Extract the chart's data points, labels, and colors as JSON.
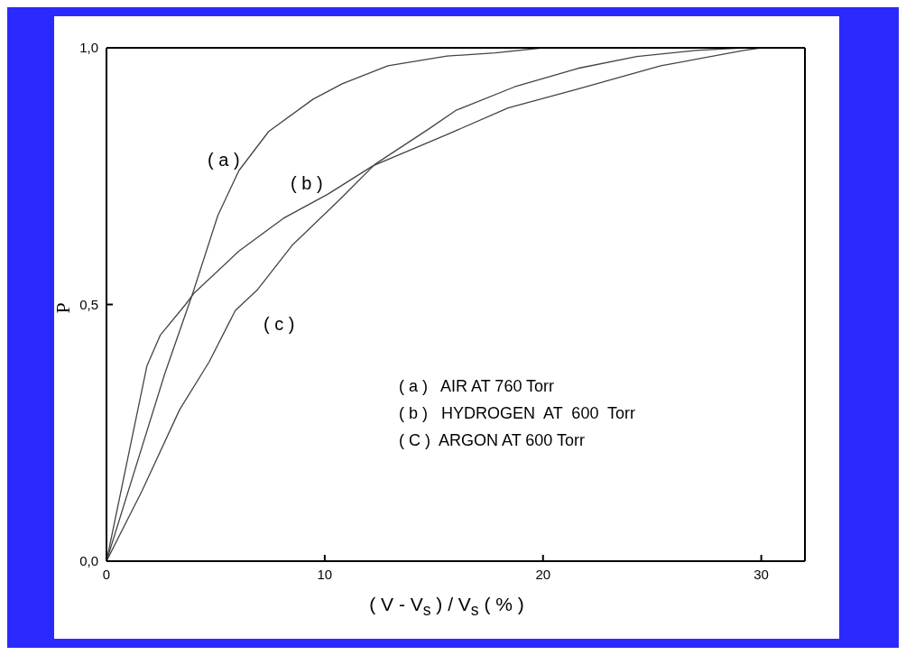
{
  "chart_data": {
    "type": "line",
    "xlabel": "( V - V$_{s}$ ) / V$_{s}$ ( % )",
    "ylabel": "P",
    "xlim": [
      0,
      32
    ],
    "xticks": [
      0,
      10,
      20,
      30
    ],
    "ylim": [
      0,
      1
    ],
    "yticks": [
      {
        "value": 0,
        "label": "0,0"
      },
      {
        "value": 0.5,
        "label": "0,5"
      },
      {
        "value": 1,
        "label": "1,0"
      }
    ],
    "legend": false,
    "marker": "none",
    "line_style": "solid",
    "series": [
      {
        "name": "( a )",
        "color": "#444444",
        "x": [
          0,
          2.67,
          3.96,
          5.1,
          6.07,
          7.43,
          9.47,
          10.8,
          12.9,
          15.6,
          17.8,
          20,
          25,
          30,
          32
        ],
        "values": [
          0,
          0.365,
          0.523,
          0.673,
          0.761,
          0.837,
          0.9,
          0.93,
          0.965,
          0.984,
          0.99,
          1,
          1,
          1,
          1
        ]
      },
      {
        "name": "( b )",
        "color": "#444444",
        "x": [
          0,
          1.85,
          2.46,
          3.62,
          4.03,
          6.07,
          8.11,
          10.15,
          12.2,
          15.6,
          18.4,
          21.6,
          25.4,
          29.2,
          30
        ],
        "values": [
          0,
          0.38,
          0.44,
          0.5,
          0.523,
          0.604,
          0.668,
          0.715,
          0.77,
          0.831,
          0.883,
          0.92,
          0.965,
          0.995,
          1
        ]
      },
      {
        "name": "( c )",
        "color": "#444444",
        "x": [
          0,
          1.64,
          3.35,
          4.7,
          5.9,
          6.9,
          8.5,
          10.8,
          12.3,
          14.8,
          16,
          18.7,
          21.6,
          24.3,
          27,
          29.2
        ],
        "values": [
          0,
          0.138,
          0.295,
          0.388,
          0.488,
          0.528,
          0.615,
          0.709,
          0.773,
          0.843,
          0.878,
          0.924,
          0.96,
          0.983,
          0.995,
          1
        ]
      }
    ],
    "annotations": [
      "( a )   AIR AT 760 Torr",
      "( b )   HYDROGEN  AT  600  Torr",
      "( C )  ARGON AT 600 Torr"
    ]
  }
}
